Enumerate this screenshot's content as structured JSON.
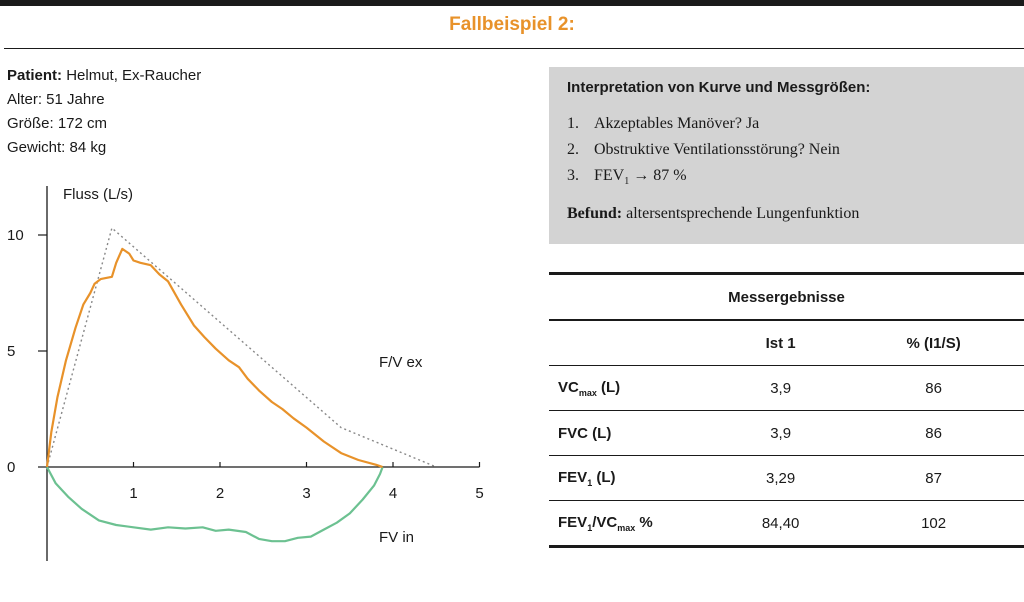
{
  "title": "Fallbeispiel 2:",
  "patient": {
    "name_label": "Patient:",
    "name_value": "Helmut, Ex-Raucher",
    "age": "Alter: 51 Jahre",
    "height": "Größe: 172 cm",
    "weight": "Gewicht: 84 kg"
  },
  "interpretation": {
    "title": "Interpretation von Kurve und Messgrößen:",
    "items": [
      {
        "num": "1.",
        "text": "Akzeptables Manöver? Ja"
      },
      {
        "num": "2.",
        "text": "Obstruktive Ventilationsstörung? Nein"
      },
      {
        "num": "3.",
        "pre": "FEV",
        "sub": "1",
        "post": " → 87 %"
      }
    ],
    "befund_label": "Befund:",
    "befund_text": " altersentsprechende Lungenfunktion"
  },
  "table": {
    "caption": "Messergebnisse",
    "col_ist": "Ist 1",
    "col_pct": "% (I1/S)",
    "rows": [
      {
        "label": "VC",
        "sub": "max",
        "unit": " (L)",
        "ist": "3,9",
        "pct": "86"
      },
      {
        "label": "FVC (L)",
        "ist": "3,9",
        "pct": "86"
      },
      {
        "label": "FEV",
        "sub": "1",
        "unit": " (L)",
        "ist": "3,29",
        "pct": "87"
      },
      {
        "label": "FEV",
        "sub": "1",
        "label2": "/VC",
        "sub2": "max",
        "unit": " %",
        "ist": "84,40",
        "pct": "102"
      }
    ]
  },
  "chart_data": {
    "type": "line",
    "ylabel": "Fluss (L/s)",
    "xlabel": "",
    "xlim": [
      0,
      5
    ],
    "ylim": [
      -3,
      10
    ],
    "x_ticks": [
      "1",
      "2",
      "3",
      "4",
      "5"
    ],
    "y_ticks": [
      "10",
      "5",
      "0"
    ],
    "annotations": [
      "F/V ex",
      "FV in"
    ],
    "colors": {
      "expiration": "#e8922a",
      "inspiration": "#6cc191",
      "predicted": "#888888"
    },
    "series": [
      {
        "name": "F/V ex",
        "points": [
          [
            0,
            0
          ],
          [
            0.05,
            1.5
          ],
          [
            0.12,
            3
          ],
          [
            0.22,
            4.6
          ],
          [
            0.33,
            6
          ],
          [
            0.42,
            7
          ],
          [
            0.5,
            7.5
          ],
          [
            0.55,
            7.9
          ],
          [
            0.62,
            8.1
          ],
          [
            0.75,
            8.2
          ],
          [
            0.8,
            8.8
          ],
          [
            0.87,
            9.4
          ],
          [
            0.95,
            9.2
          ],
          [
            1.0,
            8.9
          ],
          [
            1.08,
            8.8
          ],
          [
            1.2,
            8.7
          ],
          [
            1.3,
            8.3
          ],
          [
            1.4,
            8.0
          ],
          [
            1.55,
            7.0
          ],
          [
            1.7,
            6.1
          ],
          [
            1.82,
            5.6
          ],
          [
            1.95,
            5.1
          ],
          [
            2.1,
            4.6
          ],
          [
            2.22,
            4.3
          ],
          [
            2.32,
            3.8
          ],
          [
            2.45,
            3.3
          ],
          [
            2.6,
            2.8
          ],
          [
            2.72,
            2.5
          ],
          [
            2.85,
            2.1
          ],
          [
            3.0,
            1.7
          ],
          [
            3.2,
            1.1
          ],
          [
            3.4,
            0.6
          ],
          [
            3.6,
            0.3
          ],
          [
            3.8,
            0.1
          ],
          [
            3.88,
            0
          ]
        ]
      },
      {
        "name": "FV in",
        "points": [
          [
            0,
            0
          ],
          [
            0.1,
            -0.7
          ],
          [
            0.25,
            -1.3
          ],
          [
            0.4,
            -1.8
          ],
          [
            0.6,
            -2.3
          ],
          [
            0.8,
            -2.5
          ],
          [
            1.0,
            -2.6
          ],
          [
            1.2,
            -2.7
          ],
          [
            1.4,
            -2.6
          ],
          [
            1.6,
            -2.65
          ],
          [
            1.8,
            -2.6
          ],
          [
            1.95,
            -2.75
          ],
          [
            2.1,
            -2.7
          ],
          [
            2.3,
            -2.8
          ],
          [
            2.45,
            -3.1
          ],
          [
            2.6,
            -3.2
          ],
          [
            2.75,
            -3.2
          ],
          [
            2.9,
            -3.05
          ],
          [
            3.05,
            -3.0
          ],
          [
            3.2,
            -2.7
          ],
          [
            3.35,
            -2.4
          ],
          [
            3.5,
            -2.0
          ],
          [
            3.65,
            -1.4
          ],
          [
            3.78,
            -0.8
          ],
          [
            3.85,
            -0.3
          ],
          [
            3.88,
            0
          ]
        ]
      },
      {
        "name": "predicted",
        "points": [
          [
            0,
            0
          ],
          [
            0.75,
            10.3
          ],
          [
            3.4,
            1.7
          ],
          [
            4.5,
            0
          ]
        ]
      }
    ]
  }
}
